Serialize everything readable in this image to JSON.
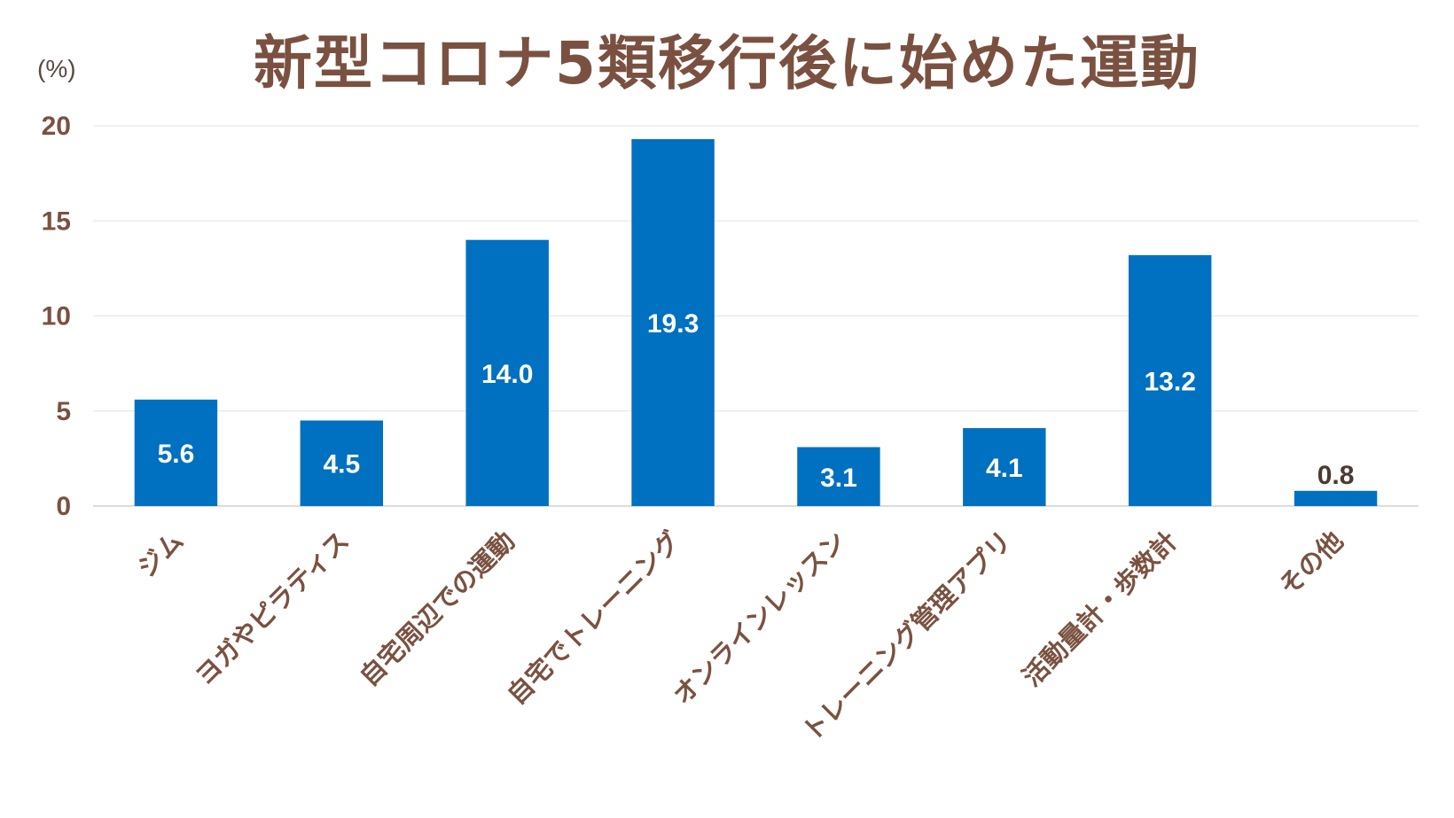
{
  "chart_data": {
    "type": "bar",
    "title": "新型コロナ5類移行後に始めた運動",
    "unit_label": "(%)",
    "xlabel": "",
    "ylabel": "",
    "ylim": [
      0,
      20
    ],
    "y_ticks": [
      0,
      5,
      10,
      15,
      20
    ],
    "grid": true,
    "bar_color": "#0070c0",
    "text_color": "#7a5140",
    "categories": [
      "ジム",
      "ヨガやピラティス",
      "自宅周辺での運動",
      "自宅でトレーニング",
      "オンラインレッスン",
      "トレーニング管理アプリ",
      "活動量計・歩数計",
      "その他"
    ],
    "values": [
      5.6,
      4.5,
      14.0,
      19.3,
      3.1,
      4.1,
      13.2,
      0.8
    ],
    "value_labels": [
      "5.6",
      "4.5",
      "14.0",
      "19.3",
      "3.1",
      "4.1",
      "13.2",
      "0.8"
    ]
  }
}
